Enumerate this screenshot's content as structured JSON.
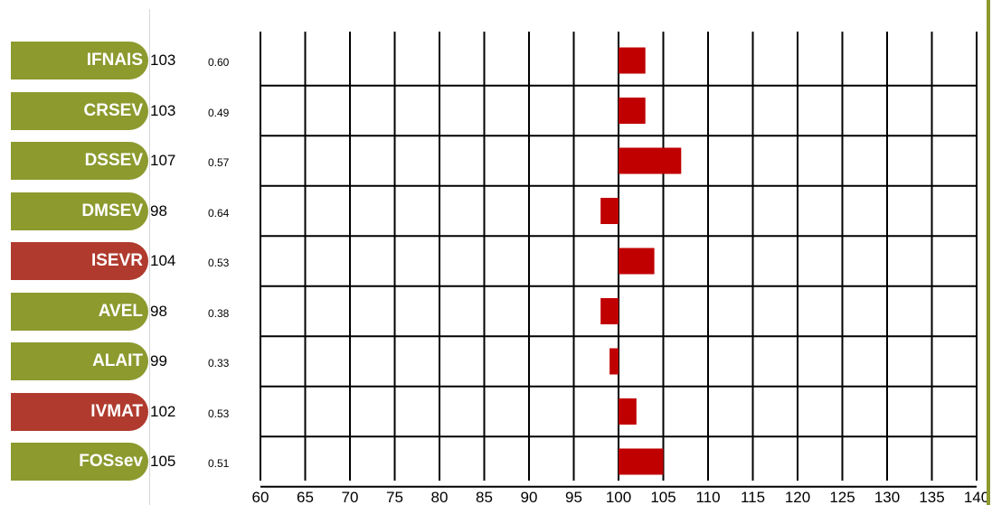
{
  "colors": {
    "trait_default": "#8c9a2e",
    "trait_highlight": "#b03a2e",
    "bar": "#c00000",
    "grid": "#000000"
  },
  "chart_data": {
    "type": "bar",
    "orientation": "horizontal",
    "baseline": 100,
    "xlim": [
      60,
      140
    ],
    "x_ticks": [
      "60",
      "65",
      "70",
      "75",
      "80",
      "85",
      "90",
      "95",
      "100",
      "105",
      "110",
      "115",
      "120",
      "125",
      "130",
      "135",
      "140"
    ],
    "grid": true,
    "rows": [
      {
        "label": "IFNAIS",
        "value": 103,
        "value_label": "103",
        "reliability": "0.60",
        "highlight": false
      },
      {
        "label": "CRSEV",
        "value": 103,
        "value_label": "103",
        "reliability": "0.49",
        "highlight": false
      },
      {
        "label": "DSSEV",
        "value": 107,
        "value_label": "107",
        "reliability": "0.57",
        "highlight": false
      },
      {
        "label": "DMSEV",
        "value": 98,
        "value_label": "98",
        "reliability": "0.64",
        "highlight": false
      },
      {
        "label": "ISEVR",
        "value": 104,
        "value_label": "104",
        "reliability": "0.53",
        "highlight": true
      },
      {
        "label": "AVEL",
        "value": 98,
        "value_label": "98",
        "reliability": "0.38",
        "highlight": false
      },
      {
        "label": "ALAIT",
        "value": 99,
        "value_label": "99",
        "reliability": "0.33",
        "highlight": false
      },
      {
        "label": "IVMAT",
        "value": 102,
        "value_label": "102",
        "reliability": "0.53",
        "highlight": true
      },
      {
        "label": "FOSsev",
        "value": 105,
        "value_label": "105",
        "reliability": "0.51",
        "highlight": false
      }
    ]
  }
}
